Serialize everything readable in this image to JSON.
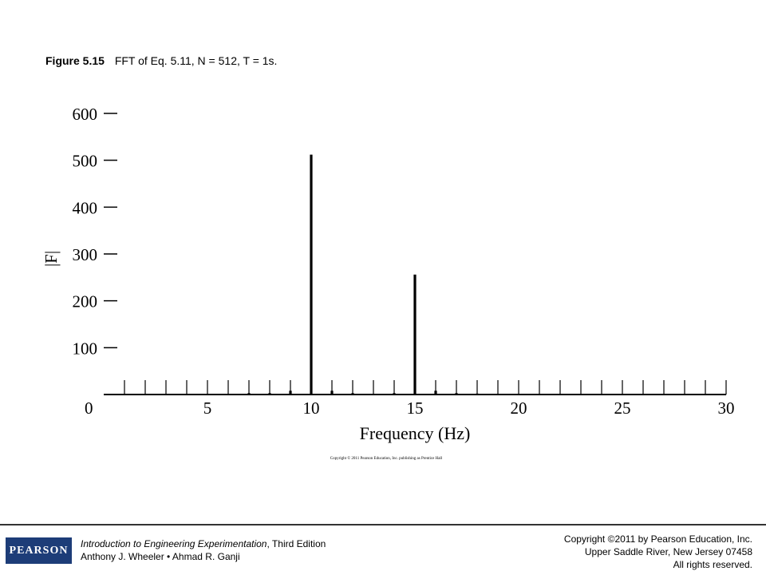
{
  "caption": {
    "figure_number": "Figure 5.15",
    "text": "FFT of Eq. 5.11, N = 512, T = 1s."
  },
  "chart_copyright": "Copyright © 2011 Pearson Education, Inc. publishing as Prentice Hall",
  "footer": {
    "logo_text": "PEARSON",
    "book_title": "Introduction to Engineering Experimentation",
    "edition": ", Third Edition",
    "authors": "Anthony J. Wheeler • Ahmad R. Ganji",
    "copyright_line1": "Copyright ©2011 by Pearson Education, Inc.",
    "copyright_line2": "Upper Saddle River, New Jersey 07458",
    "copyright_line3": "All rights reserved."
  },
  "colors": {
    "logo_background": "#1d3d78",
    "chart_ink": "#000000",
    "footer_rule": "#333333"
  },
  "chart_data": {
    "type": "bar",
    "xlabel": "Frequency (Hz)",
    "ylabel": "|F|",
    "xlim": [
      0,
      30
    ],
    "ylim": [
      0,
      600
    ],
    "x_ticks": [
      0,
      5,
      10,
      15,
      20,
      25,
      30
    ],
    "y_ticks": [
      100,
      200,
      300,
      400,
      500,
      600
    ],
    "grid": false,
    "x": [
      1,
      2,
      3,
      4,
      5,
      6,
      7,
      8,
      9,
      10,
      11,
      12,
      13,
      14,
      15,
      16,
      17,
      18,
      19,
      20,
      21,
      22,
      23,
      24,
      25,
      26,
      27,
      28,
      29,
      30
    ],
    "values": [
      0,
      0,
      0,
      1,
      1,
      1,
      3,
      3,
      8,
      512,
      8,
      3,
      0,
      3,
      256,
      8,
      3,
      2,
      1,
      1,
      1,
      1,
      1,
      1,
      0,
      1,
      1,
      1,
      0,
      0
    ]
  }
}
